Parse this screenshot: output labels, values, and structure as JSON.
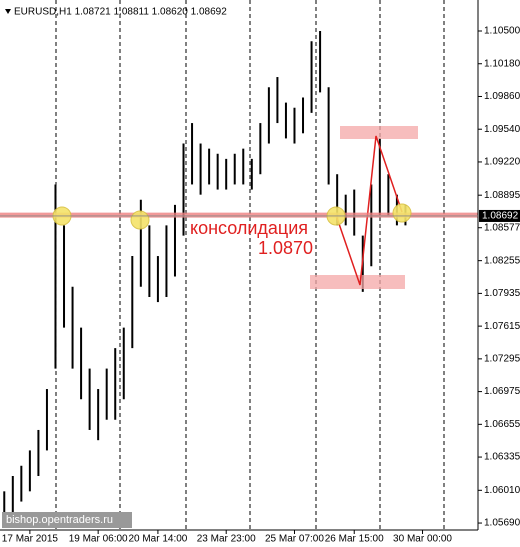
{
  "chart_data": {
    "type": "ohlc",
    "header": "EURUSD,H1  1.08721 1.08811 1.08620 1.08692",
    "categories": [
      null,
      null,
      null,
      "17 Mar 2015",
      null,
      null,
      null,
      null,
      null,
      null,
      null,
      "19 Mar 06:00",
      null,
      null,
      null,
      null,
      null,
      null,
      "20 Mar 14:00",
      null,
      null,
      null,
      null,
      null,
      null,
      null,
      "23 Mar 23:00",
      null,
      null,
      null,
      null,
      null,
      null,
      null,
      "25 Mar 07:00",
      null,
      null,
      null,
      null,
      null,
      null,
      "26 Mar 15:00",
      null,
      null,
      null,
      null,
      null,
      null,
      null,
      "30 Mar 00:00",
      null,
      null,
      null,
      null,
      null,
      null
    ],
    "highs": [
      1.06,
      1.0615,
      1.0625,
      1.064,
      1.066,
      1.07,
      1.09,
      1.086,
      1.08,
      1.076,
      1.072,
      1.07,
      1.072,
      1.074,
      1.076,
      1.083,
      1.0885,
      1.086,
      1.083,
      1.086,
      1.088,
      1.094,
      1.096,
      1.094,
      1.0935,
      1.093,
      1.0925,
      1.093,
      1.0935,
      1.0925,
      1.096,
      1.0995,
      1.1005,
      1.098,
      1.0975,
      1.0985,
      1.104,
      1.105,
      1.0995,
      1.091,
      1.089,
      1.0895,
      1.085,
      1.09,
      1.0945,
      1.091,
      1.089,
      1.088,
      null,
      null,
      null,
      null,
      null,
      null,
      null,
      null
    ],
    "lows": [
      1.057,
      1.0575,
      1.059,
      1.06,
      1.0615,
      1.064,
      1.072,
      1.076,
      1.072,
      1.069,
      1.066,
      1.065,
      1.067,
      1.067,
      1.069,
      1.074,
      1.08,
      1.079,
      1.0785,
      1.079,
      1.081,
      1.085,
      1.09,
      1.089,
      1.09,
      1.0895,
      1.0895,
      1.09,
      1.09,
      1.0895,
      1.091,
      1.094,
      1.096,
      1.0945,
      1.094,
      1.095,
      1.097,
      1.099,
      1.09,
      1.086,
      1.086,
      1.085,
      1.0795,
      1.082,
      1.087,
      1.087,
      1.086,
      1.086,
      null,
      null,
      null,
      null,
      null,
      null,
      null,
      null
    ],
    "color": "#000000",
    "ylim": [
      1.05622,
      1.10764
    ],
    "yticks": [
      {
        "value": 1.105,
        "label": "1.10500"
      },
      {
        "value": 1.1018,
        "label": "1.10180"
      },
      {
        "value": 1.0986,
        "label": "1.09860"
      },
      {
        "value": 1.0954,
        "label": "1.09540"
      },
      {
        "value": 1.0922,
        "label": "1.09220"
      },
      1.08895,
      1.08577,
      1.08255,
      {
        "value": 1.07935,
        "label": "1.07935"
      },
      {
        "value": 1.07615,
        "label": "1.07615"
      },
      1.07295,
      1.06975,
      1.06655,
      1.06335,
      {
        "value": 1.0601,
        "label": "1.06010"
      },
      {
        "value": 1.0569,
        "label": "1.05690"
      }
    ],
    "current_price": 1.08692,
    "level": {
      "value": 1.087,
      "label": "1.0870"
    },
    "annotation": "консолидация",
    "watermark": "bishop.opentraders.ru"
  }
}
